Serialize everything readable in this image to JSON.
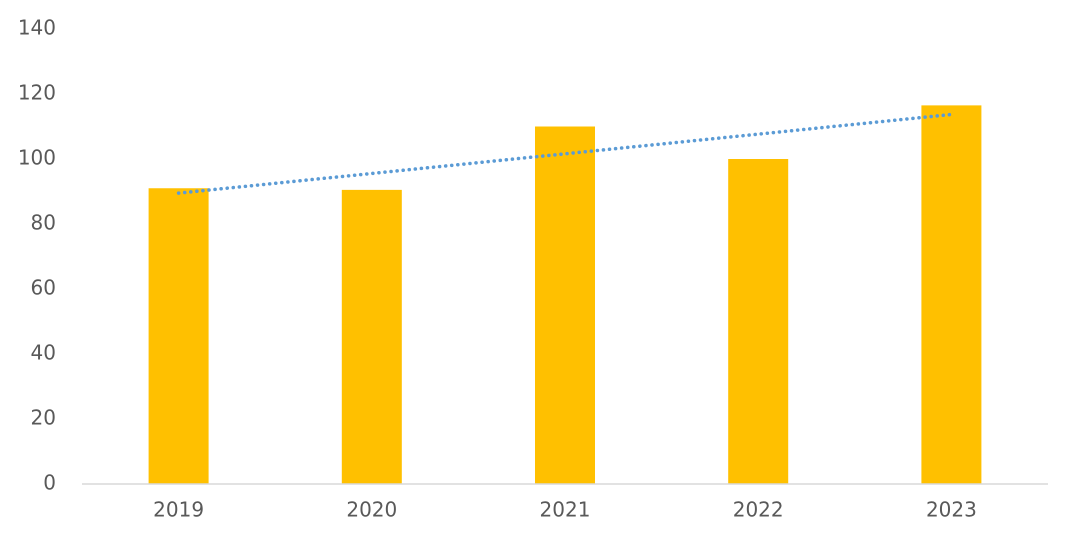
{
  "chart_data": {
    "type": "bar",
    "categories": [
      "2019",
      "2020",
      "2021",
      "2022",
      "2023"
    ],
    "values": [
      91,
      90.5,
      110,
      100,
      116.5
    ],
    "color": "#ffc000",
    "ylim": [
      0,
      140
    ],
    "yticks": [
      0,
      20,
      40,
      60,
      80,
      100,
      120,
      140
    ],
    "grid": false,
    "trendline": {
      "type": "linear",
      "style": "dotted",
      "color": "#5b9bd5"
    }
  }
}
